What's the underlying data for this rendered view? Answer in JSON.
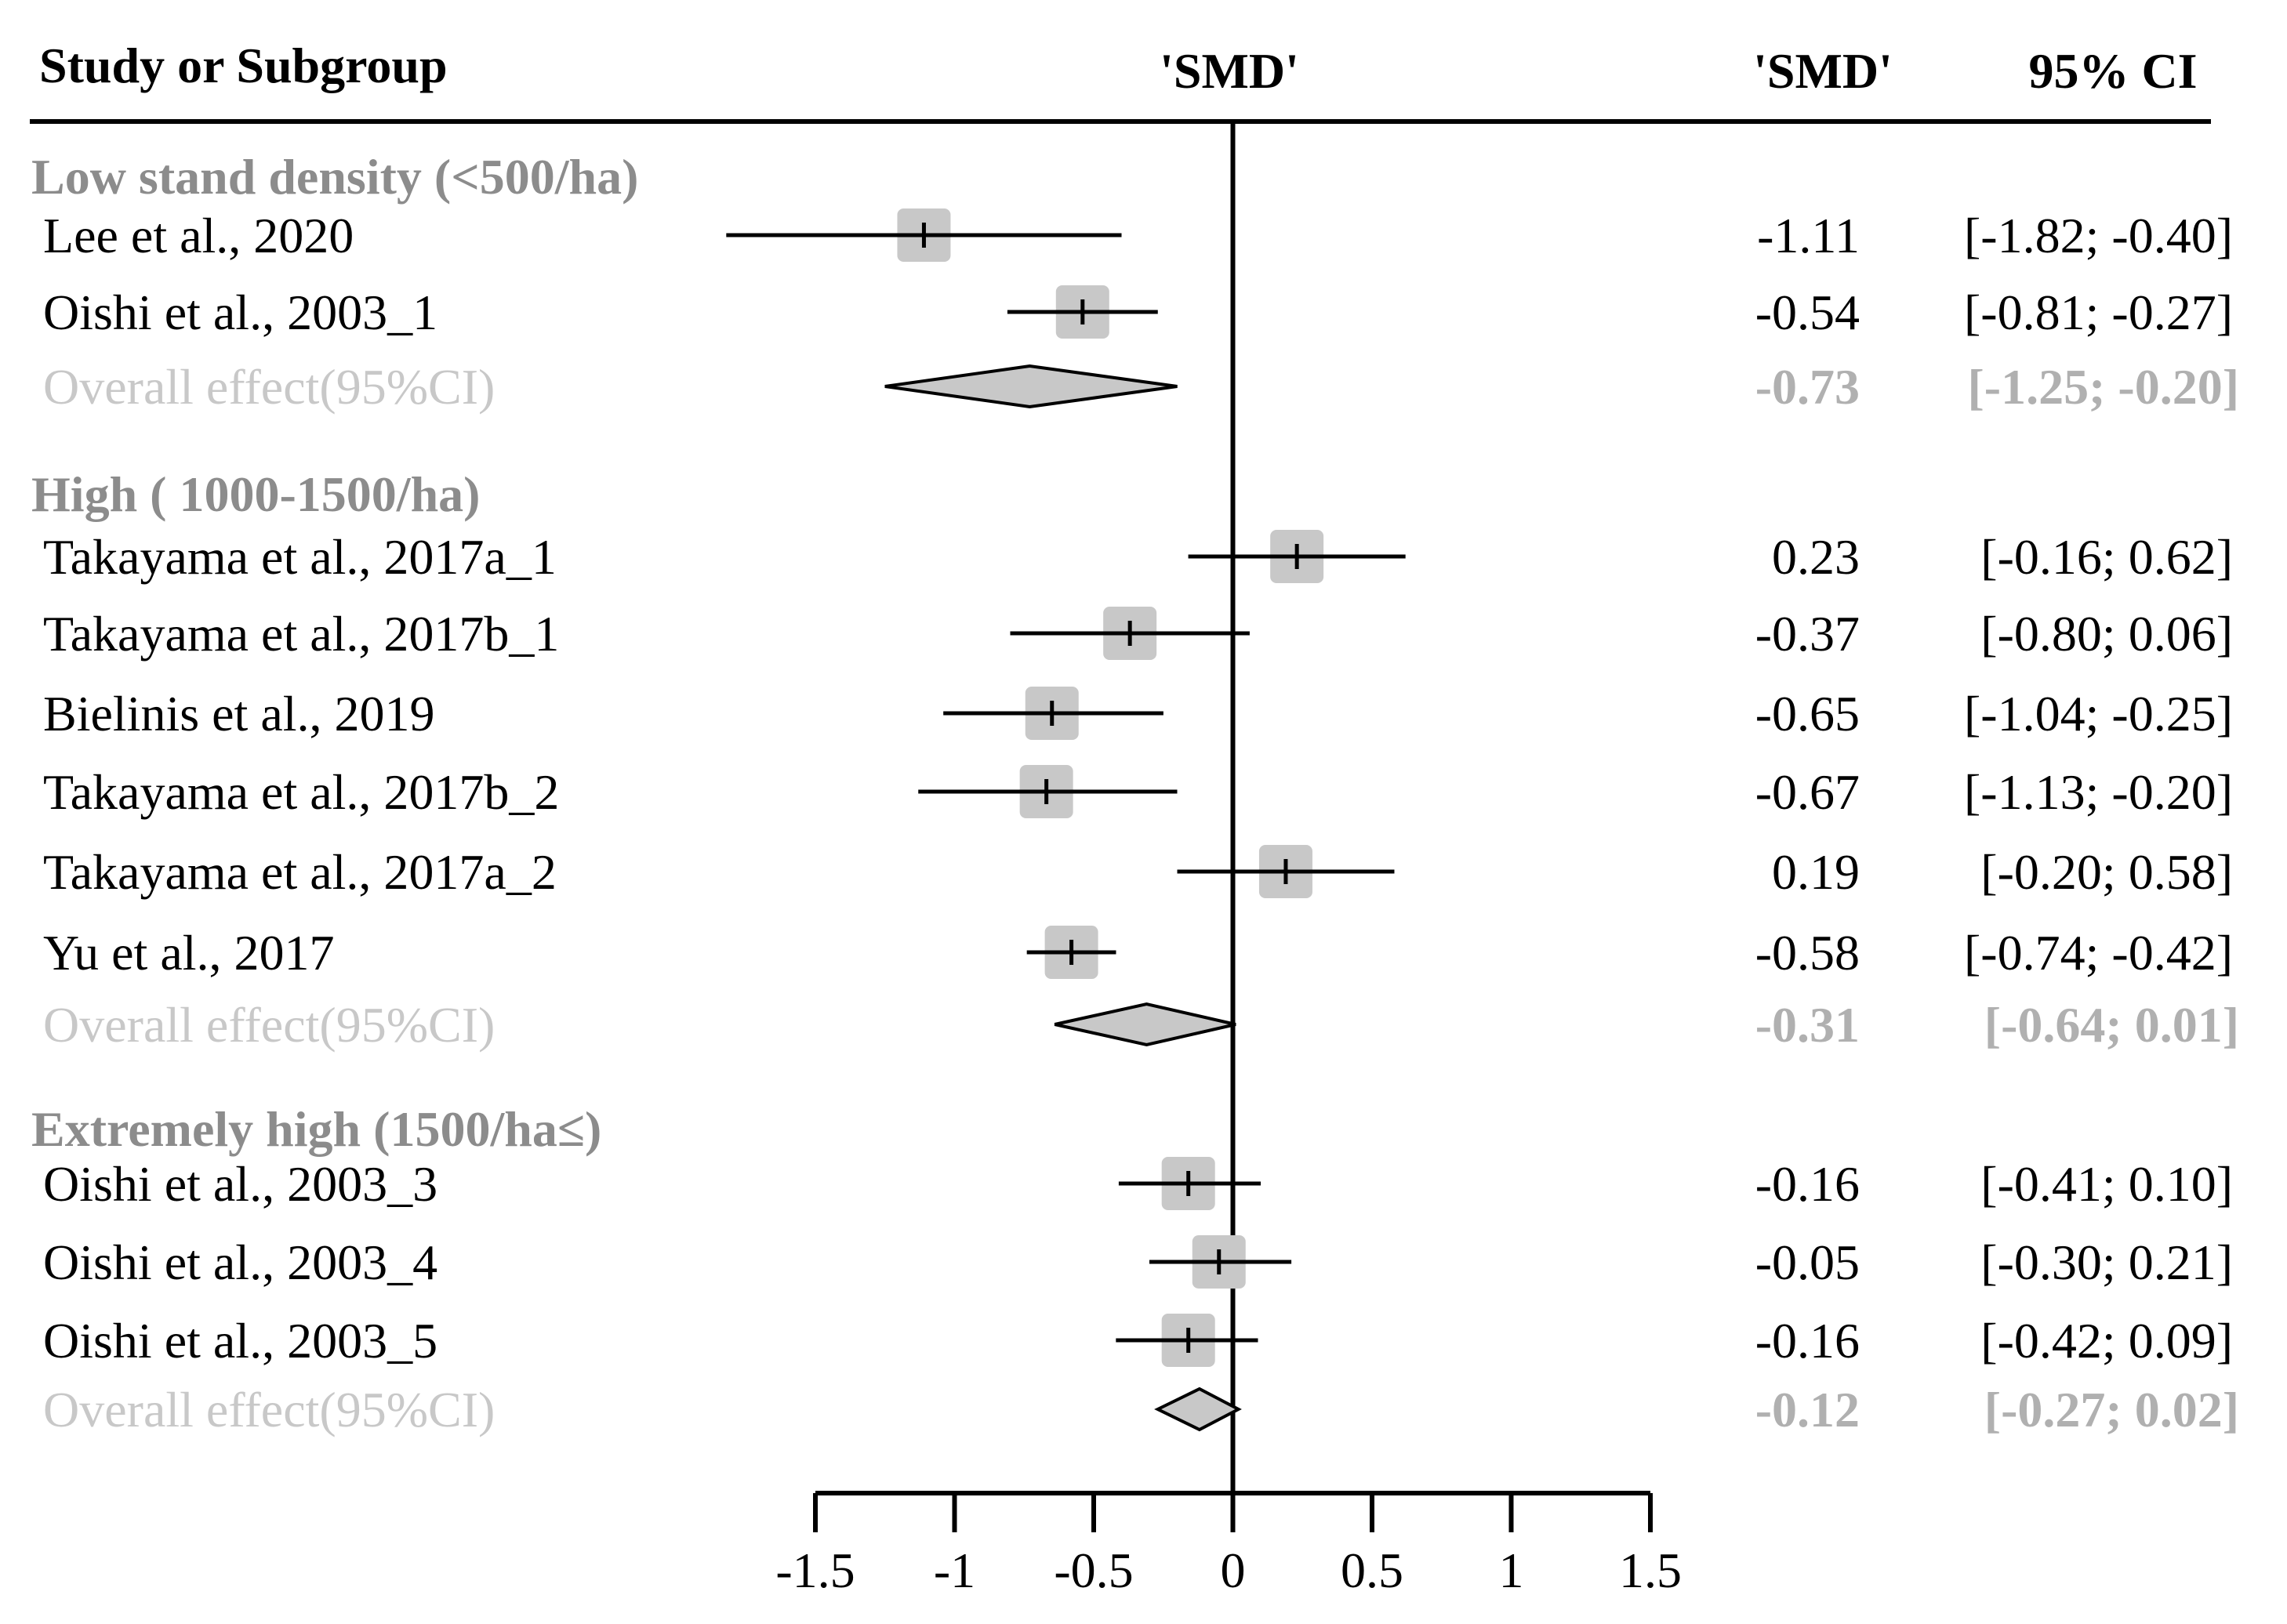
{
  "chart_data": {
    "type": "forest",
    "title": "",
    "headers": {
      "study": "Study or Subgroup",
      "plot": "'SMD'",
      "smd": "'SMD'",
      "ci": "95% CI"
    },
    "xlim": [
      -1.5,
      1.5
    ],
    "ticks": [
      -1.5,
      -1,
      -0.5,
      0,
      0.5,
      1,
      1.5
    ],
    "tick_labels": [
      "-1.5",
      "-1",
      "-0.5",
      "0",
      "0.5",
      "1",
      "1.5"
    ],
    "colors": {
      "box": "#c8c8c8",
      "diamond": "#c8c8c8",
      "group_label": "#8c8c8c",
      "overall_label": "#c8c8c8",
      "overall_value": "#b0b0b0"
    },
    "groups": [
      {
        "label": "Low stand density (<500/ha)",
        "studies": [
          {
            "name": "Lee et al., 2020",
            "smd": -1.11,
            "lo": -1.82,
            "hi": -0.4,
            "smd_text": "-1.11",
            "ci_text": "[-1.82; -0.40]"
          },
          {
            "name": "Oishi et al., 2003_1",
            "smd": -0.54,
            "lo": -0.81,
            "hi": -0.27,
            "smd_text": "-0.54",
            "ci_text": "[-0.81; -0.27]"
          }
        ],
        "overall": {
          "label": "Overall effect(95%CI)",
          "smd": -0.73,
          "lo": -1.25,
          "hi": -0.2,
          "smd_text": "-0.73",
          "ci_text": "[-1.25; -0.20]"
        }
      },
      {
        "label": "High ( 1000-1500/ha)",
        "studies": [
          {
            "name": "Takayama et al., 2017a_1",
            "smd": 0.23,
            "lo": -0.16,
            "hi": 0.62,
            "smd_text": "0.23",
            "ci_text": "[-0.16;  0.62]"
          },
          {
            "name": "Takayama et al., 2017b_1",
            "smd": -0.37,
            "lo": -0.8,
            "hi": 0.06,
            "smd_text": "-0.37",
            "ci_text": "[-0.80;  0.06]"
          },
          {
            "name": "Bielinis et al., 2019",
            "smd": -0.65,
            "lo": -1.04,
            "hi": -0.25,
            "smd_text": "-0.65",
            "ci_text": "[-1.04; -0.25]"
          },
          {
            "name": "Takayama et al., 2017b_2",
            "smd": -0.67,
            "lo": -1.13,
            "hi": -0.2,
            "smd_text": "-0.67",
            "ci_text": "[-1.13; -0.20]"
          },
          {
            "name": "Takayama et al., 2017a_2",
            "smd": 0.19,
            "lo": -0.2,
            "hi": 0.58,
            "smd_text": "0.19",
            "ci_text": "[-0.20;  0.58]"
          },
          {
            "name": "Yu  et al., 2017",
            "smd": -0.58,
            "lo": -0.74,
            "hi": -0.42,
            "smd_text": "-0.58",
            "ci_text": "[-0.74; -0.42]"
          }
        ],
        "overall": {
          "label": "Overall effect(95%CI)",
          "smd": -0.31,
          "lo": -0.64,
          "hi": 0.01,
          "smd_text": "-0.31",
          "ci_text": "[-0.64;  0.01]"
        }
      },
      {
        "label": "Extremely high (1500/ha≤)",
        "studies": [
          {
            "name": "Oishi et al., 2003_3",
            "smd": -0.16,
            "lo": -0.41,
            "hi": 0.1,
            "smd_text": "-0.16",
            "ci_text": "[-0.41;  0.10]"
          },
          {
            "name": "Oishi et al., 2003_4",
            "smd": -0.05,
            "lo": -0.3,
            "hi": 0.21,
            "smd_text": "-0.05",
            "ci_text": "[-0.30;  0.21]"
          },
          {
            "name": "Oishi et al., 2003_5",
            "smd": -0.16,
            "lo": -0.42,
            "hi": 0.09,
            "smd_text": "-0.16",
            "ci_text": "[-0.42;  0.09]"
          }
        ],
        "overall": {
          "label": "Overall effect(95%CI)",
          "smd": -0.12,
          "lo": -0.27,
          "hi": 0.02,
          "smd_text": "-0.12",
          "ci_text": "[-0.27;  0.02]"
        }
      }
    ]
  }
}
